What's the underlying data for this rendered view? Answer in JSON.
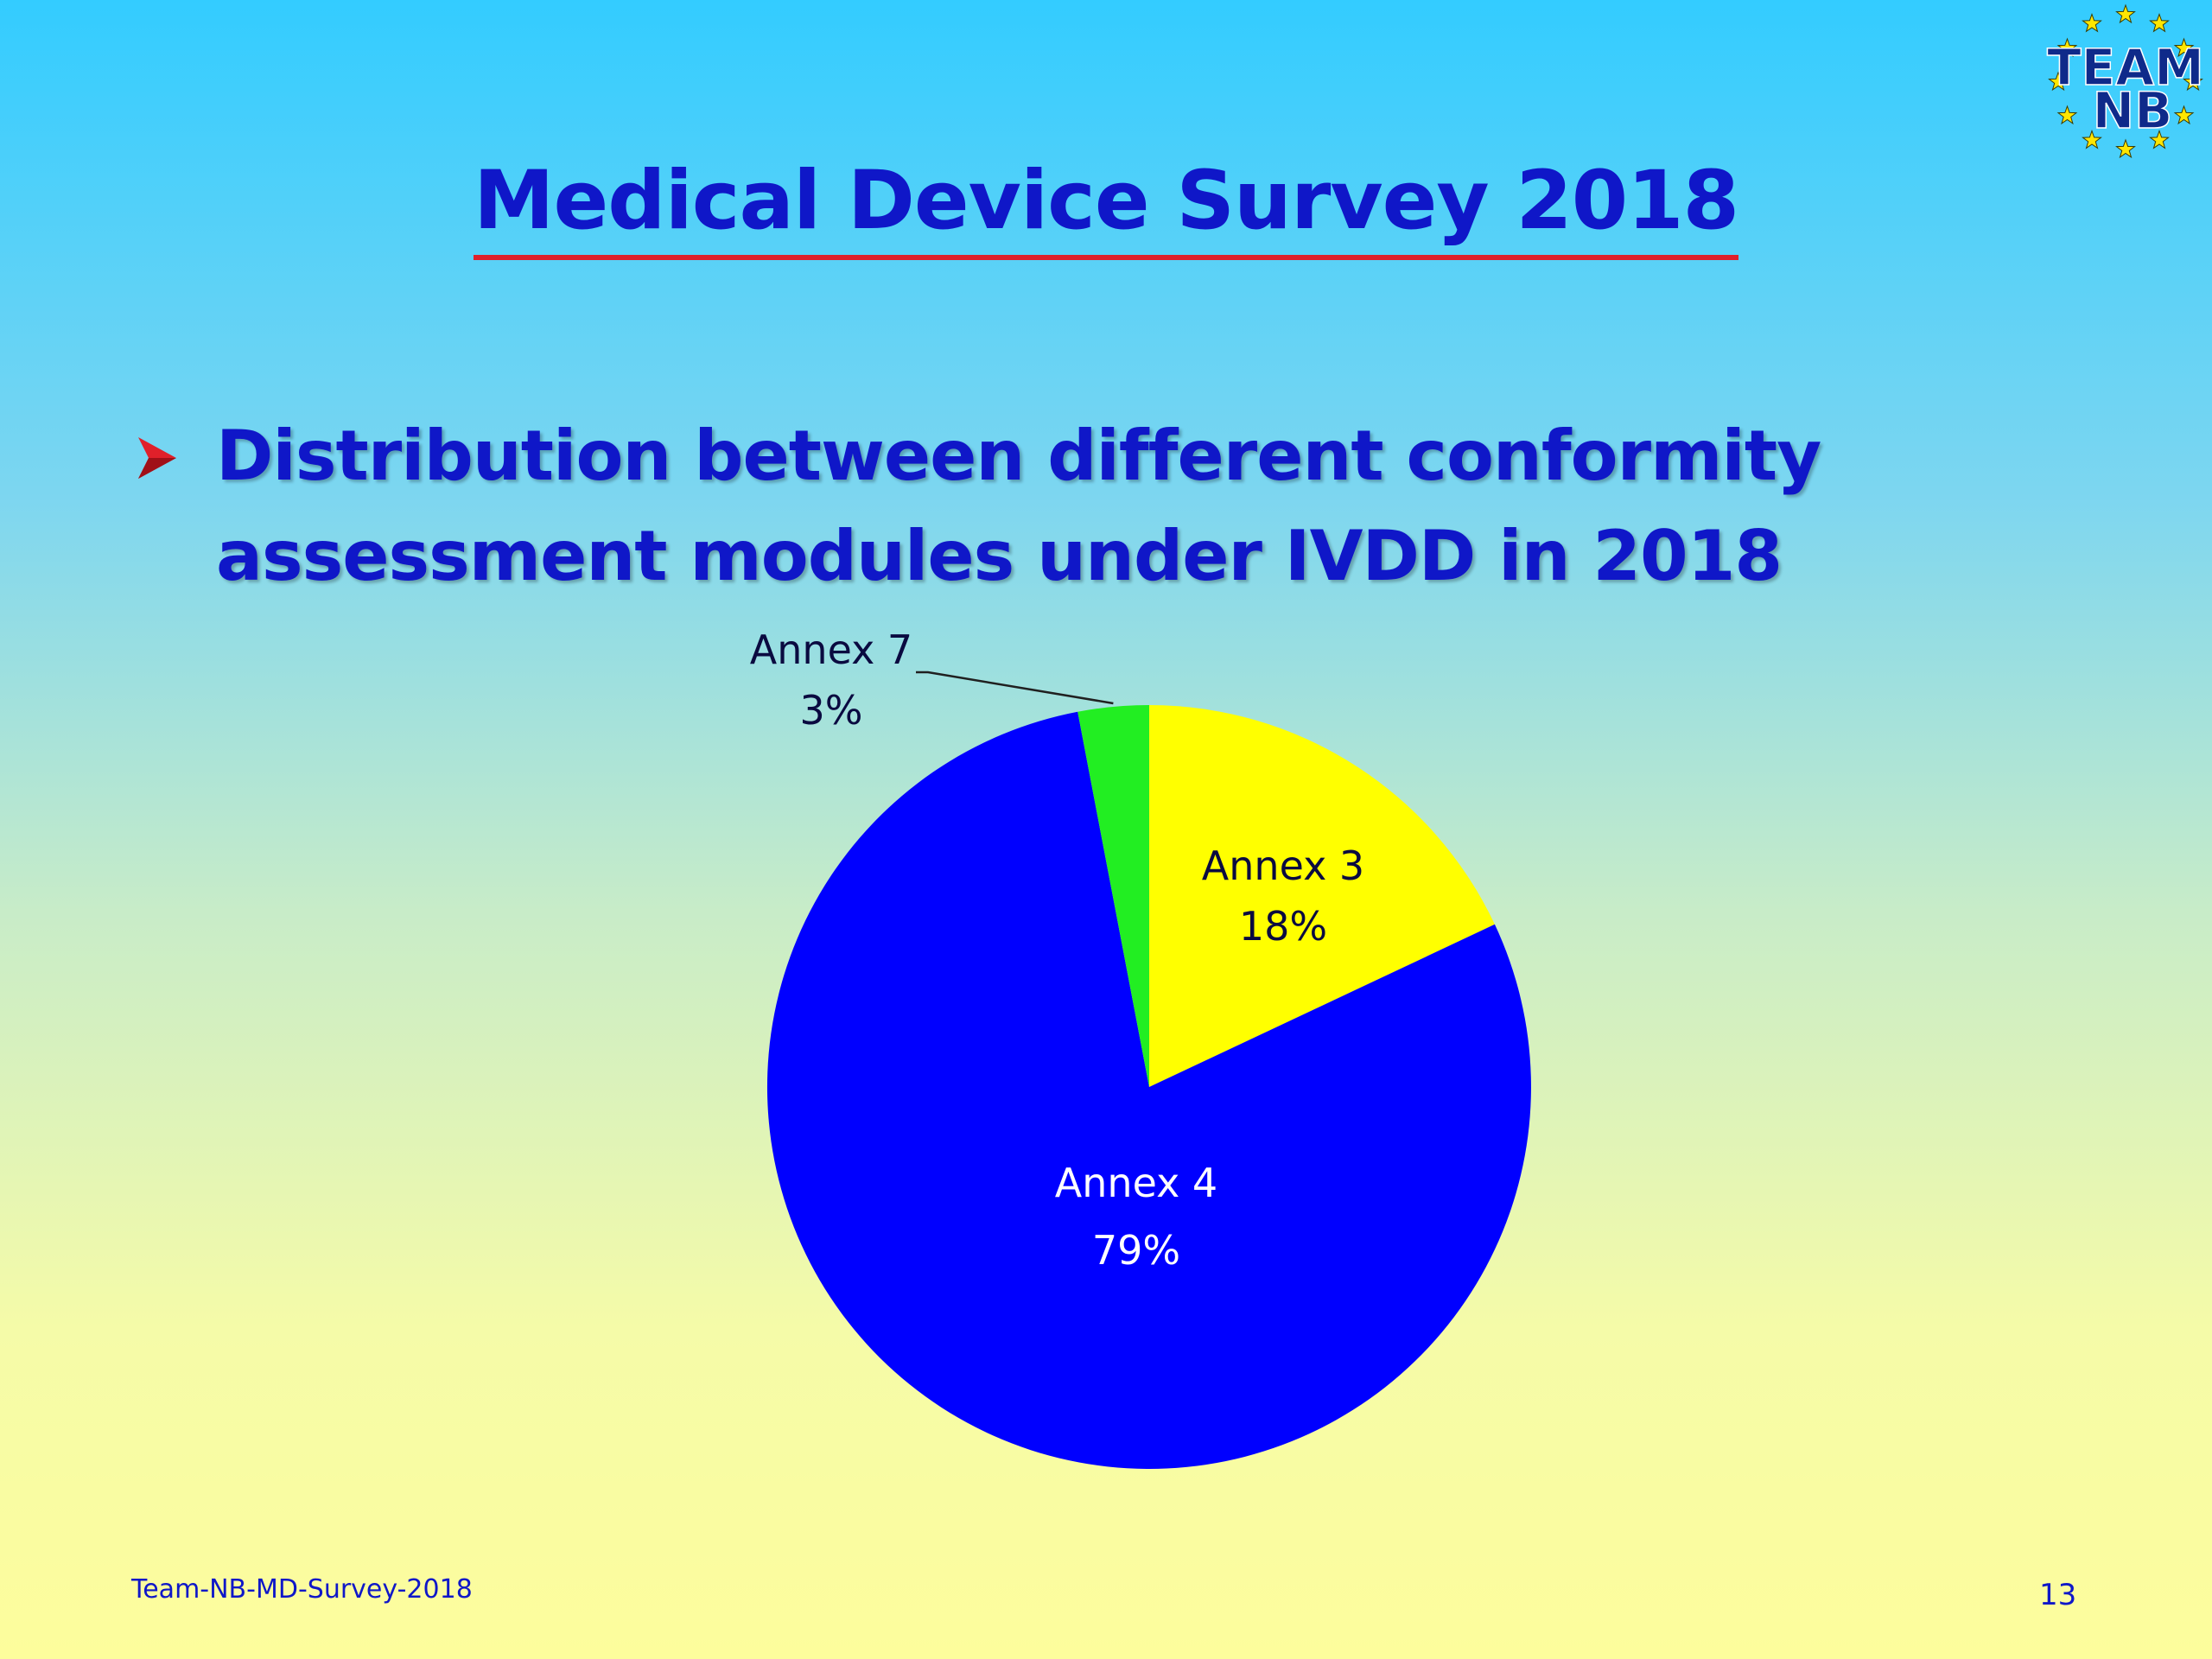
{
  "slide": {
    "title": "Medical Device Survey 2018",
    "bullet_line1": "Distribution between different conformity",
    "bullet_line2": "assessment modules under IVDD  in 2018",
    "footer_left": "Team-NB-MD-Survey-2018",
    "page_number": "13",
    "logo_text_line1": "TEAM",
    "logo_text_line2": "NB"
  },
  "colors": {
    "title": "#0f17c8",
    "title_underline": "#e0202a",
    "bullet_arrow": "#e0202a"
  },
  "chart_data": {
    "type": "pie",
    "title": "",
    "slices": [
      {
        "label": "Annex 3",
        "percent_text": "18%",
        "value": 18,
        "color": "#ffff00",
        "label_color": "#0a0a40"
      },
      {
        "label": "Annex 4",
        "percent_text": "79%",
        "value": 79,
        "color": "#0000ff",
        "label_color": "#ffffff"
      },
      {
        "label": "Annex 7",
        "percent_text": "3%",
        "value": 3,
        "color": "#22ee22",
        "label_color": "#0a0a40"
      }
    ],
    "start_angle_deg": 0,
    "direction": "clockwise",
    "legend": "none"
  }
}
